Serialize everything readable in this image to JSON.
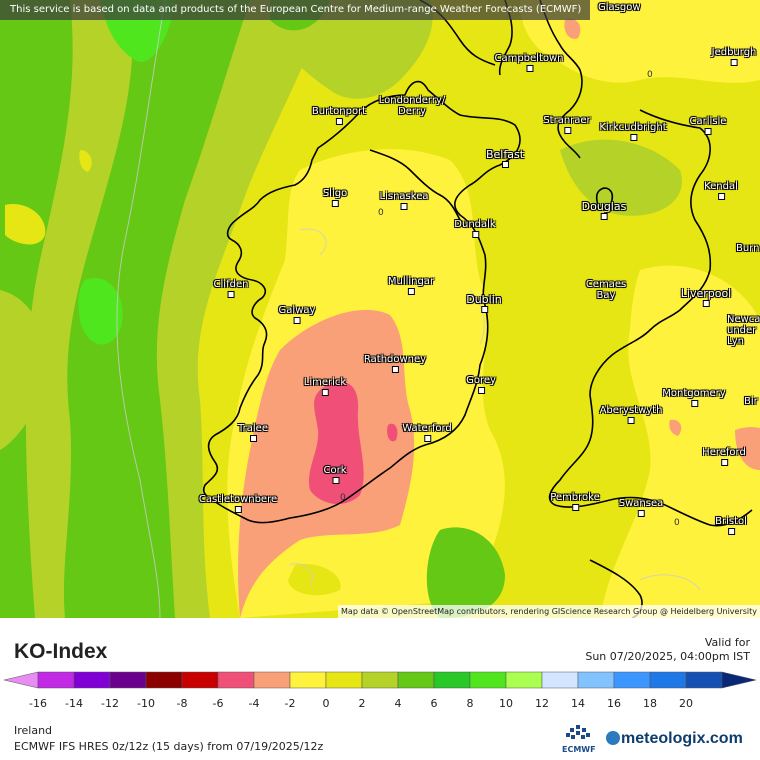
{
  "map": {
    "notice": "This service is based on data and products of the European Centre for Medium-range Weather Forecasts (ECMWF)",
    "attribution": "Map data © OpenStreetMap contributors, rendering GIScience Research Group @ Heidelberg University",
    "top_label": "Glasgow",
    "isoline_labels": [
      "0",
      "0",
      "0",
      "0"
    ],
    "cities": {
      "campbeltown": "Campbeltown",
      "jedburgh": "Jedburgh",
      "burtonport": "Burtonport",
      "londonderry": "Londonderry/\nDerry",
      "stranraer": "Stranraer",
      "kirkcudbright": "Kirkcudbright",
      "carlisle": "Carlisle",
      "belfast": "Belfast",
      "sligo": "Sligo",
      "lisnaskea": "Lisnaskea",
      "kendal": "Kendal",
      "douglas": "Douglas",
      "dundalk": "Dundalk",
      "burnley": "Burn",
      "clifden": "Clifden",
      "mullingar": "Mullingar",
      "cemaes_bay": "Cemaes\nBay",
      "liverpool": "Liverpool",
      "dublin": "Dublin",
      "galway": "Galway",
      "newcastle": "Newca\nunder\nLyn",
      "rathdowney": "Rathdowney",
      "limerick": "Limerick",
      "gorey": "Gorey",
      "montgomery": "Montgomery",
      "birmingham": "Bir",
      "aberystwyth": "Aberystwyth",
      "tralee": "Tralee",
      "waterford": "Waterford",
      "hereford": "Hereford",
      "cork": "Cork",
      "pembroke": "Pembroke",
      "swansea": "Swansea",
      "castletownbere": "Castletownbere",
      "bristol": "Bristol"
    }
  },
  "legend": {
    "title": "KO-Index",
    "valid_label": "Valid for",
    "valid_time": "Sun 07/20/2025, 04:00pm IST",
    "ticks": [
      "-16",
      "-14",
      "-12",
      "-10",
      "-8",
      "-6",
      "-4",
      "-2",
      "0",
      "2",
      "4",
      "6",
      "8",
      "10",
      "12",
      "14",
      "16",
      "18",
      "20"
    ],
    "colors": [
      "#e68cf2",
      "#c22ae6",
      "#8000d6",
      "#6a008c",
      "#8c0000",
      "#c80000",
      "#f05078",
      "#faa078",
      "#fff23c",
      "#e6e614",
      "#b4d228",
      "#64c814",
      "#28c828",
      "#50e61e",
      "#aaff50",
      "#d2e6ff",
      "#82c3ff",
      "#3c96ff",
      "#1e78e6",
      "#1450b4",
      "#0a2878"
    ]
  },
  "footer": {
    "region": "Ireland",
    "model": "ECMWF IFS HRES 0z/12z (15 days)  from  07/19/2025/12z",
    "ecmwf_label": "ECMWF",
    "brand": "meteologix.com"
  }
}
